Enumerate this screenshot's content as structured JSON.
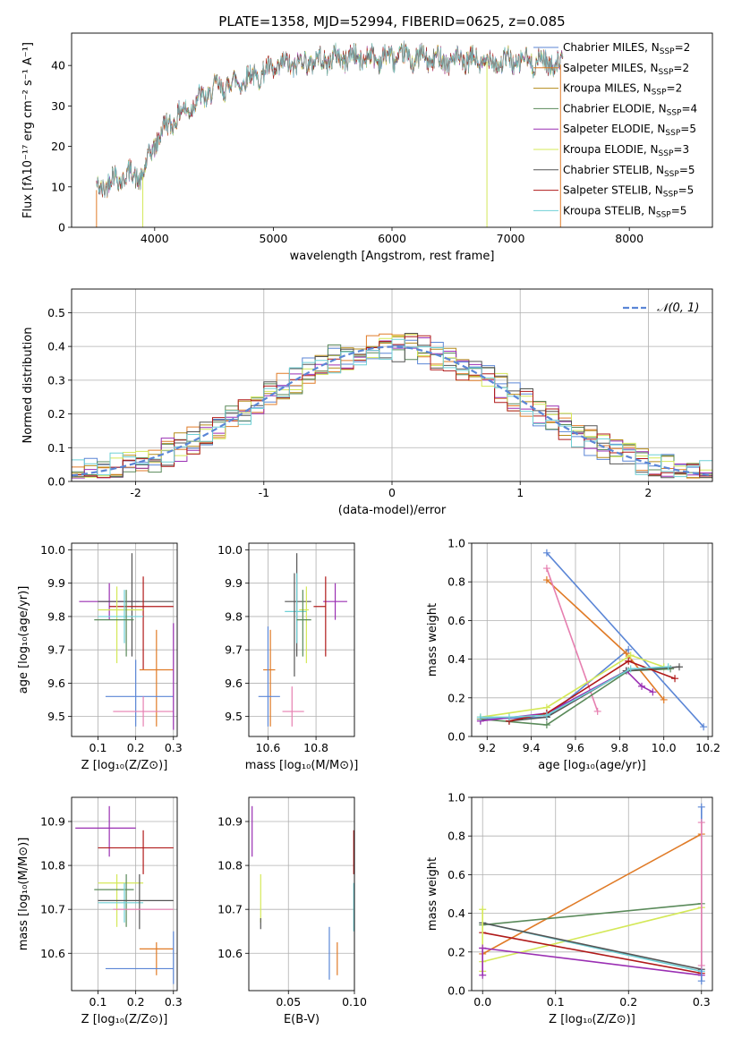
{
  "title": "PLATE=1358, MJD=52994, FIBERID=0625, z=0.085",
  "colors": {
    "Chabrier MILES": "#5b86d6",
    "Salpeter MILES": "#e07b27",
    "Kroupa MILES": "#b58b1a",
    "Chabrier ELODIE": "#5a8a5a",
    "Salpeter ELODIE": "#9a2fb3",
    "Kroupa ELODIE": "#d4e858",
    "Chabrier STELIB": "#555555",
    "Salpeter STELIB": "#b01a1a",
    "Kroupa STELIB": "#6fd0d6",
    "pink": "#e67fb0",
    "normal": "#5b86d6"
  },
  "chart_data": [
    {
      "id": "spectrum",
      "type": "line",
      "title": "PLATE=1358, MJD=52994, FIBERID=0625, z=0.085",
      "xlabel": "wavelength [Angstrom, rest frame]",
      "ylabel": "Flux [fλ10⁻¹⁷ erg cm⁻² s⁻¹ A⁻¹]",
      "xlim": [
        3300,
        8700
      ],
      "ylim": [
        0,
        48
      ],
      "xticks": [
        4000,
        5000,
        6000,
        7000,
        8000
      ],
      "yticks": [
        0,
        10,
        20,
        30,
        40
      ],
      "legend_placement": "top-right",
      "grid": false,
      "continuum": [
        [
          3500,
          9
        ],
        [
          3650,
          12
        ],
        [
          3800,
          13
        ],
        [
          3900,
          12.5
        ],
        [
          4000,
          21
        ],
        [
          4100,
          25
        ],
        [
          4300,
          30
        ],
        [
          4500,
          34
        ],
        [
          4700,
          36
        ],
        [
          4900,
          38
        ],
        [
          5100,
          40
        ],
        [
          5300,
          41
        ],
        [
          5600,
          42
        ],
        [
          5900,
          42
        ],
        [
          6100,
          42
        ],
        [
          6400,
          41.5
        ],
        [
          6700,
          41
        ],
        [
          7000,
          41
        ],
        [
          7300,
          41
        ],
        [
          7450,
          40
        ]
      ],
      "series": [
        {
          "name": "Chabrier MILES, N_SSP=2",
          "color_key": "Chabrier MILES"
        },
        {
          "name": "Salpeter MILES, N_SSP=2",
          "color_key": "Salpeter MILES"
        },
        {
          "name": "Kroupa MILES, N_SSP=2",
          "color_key": "Kroupa MILES"
        },
        {
          "name": "Chabrier ELODIE, N_SSP=4",
          "color_key": "Chabrier ELODIE"
        },
        {
          "name": "Salpeter ELODIE, N_SSP=5",
          "color_key": "Salpeter ELODIE"
        },
        {
          "name": "Kroupa ELODIE, N_SSP=3",
          "color_key": "Kroupa ELODIE"
        },
        {
          "name": "Chabrier STELIB, N_SSP=5",
          "color_key": "Chabrier STELIB"
        },
        {
          "name": "Salpeter STELIB, N_SSP=5",
          "color_key": "Salpeter STELIB"
        },
        {
          "name": "Kroupa STELIB, N_SSP=5",
          "color_key": "Kroupa STELIB"
        }
      ],
      "legend_labels": [
        {
          "main": "Chabrier MILES, N",
          "sub": "SSP",
          "tail": "=2"
        },
        {
          "main": "Salpeter MILES, N",
          "sub": "SSP",
          "tail": "=2"
        },
        {
          "main": "Kroupa MILES, N",
          "sub": "SSP",
          "tail": "=2"
        },
        {
          "main": "Chabrier ELODIE, N",
          "sub": "SSP",
          "tail": "=4"
        },
        {
          "main": "Salpeter ELODIE, N",
          "sub": "SSP",
          "tail": "=5"
        },
        {
          "main": "Kroupa ELODIE, N",
          "sub": "SSP",
          "tail": "=3"
        },
        {
          "main": "Chabrier STELIB, N",
          "sub": "SSP",
          "tail": "=5"
        },
        {
          "main": "Salpeter STELIB, N",
          "sub": "SSP",
          "tail": "=5"
        },
        {
          "main": "Kroupa STELIB, N",
          "sub": "SSP",
          "tail": "=5"
        }
      ]
    },
    {
      "id": "residuals",
      "type": "line",
      "xlabel": "(data-model)/error",
      "ylabel": "Normed distribution",
      "xlim": [
        -2.5,
        2.5
      ],
      "ylim": [
        0,
        0.57
      ],
      "xticks": [
        -2,
        -1,
        0,
        1,
        2
      ],
      "yticks": [
        0.0,
        0.1,
        0.2,
        0.3,
        0.4,
        0.5
      ],
      "grid": true,
      "legend": "𝒩(0, 1)",
      "legend_placement": "top-right",
      "hist_bin_width": 0.1
    },
    {
      "id": "age_vs_Z",
      "type": "scatter",
      "xlabel": "Z [log₁₀(Z/Z⊙)]",
      "ylabel": "age  [log₁₀(age/yr)]",
      "xlim": [
        0.03,
        0.31
      ],
      "ylim": [
        9.44,
        10.02
      ],
      "xticks": [
        0.1,
        0.2,
        0.3
      ],
      "yticks": [
        9.5,
        9.6,
        9.7,
        9.8,
        9.9,
        10.0
      ],
      "grid": true,
      "points": [
        {
          "c": "Salpeter ELODIE",
          "x": 0.13,
          "y": 9.845,
          "xerr": [
            0.05,
            0.21
          ],
          "yerr": [
            9.79,
            9.9
          ]
        },
        {
          "c": "Chabrier STELIB",
          "x": 0.19,
          "y": 9.845,
          "xerr": [
            0.1,
            0.3
          ],
          "yerr": [
            9.68,
            9.99
          ]
        },
        {
          "c": "Salpeter STELIB",
          "x": 0.22,
          "y": 9.83,
          "xerr": [
            0.13,
            0.3
          ],
          "yerr": [
            9.64,
            9.92
          ]
        },
        {
          "c": "Kroupa ELODIE",
          "x": 0.15,
          "y": 9.82,
          "xerr": [
            0.1,
            0.22
          ],
          "yerr": [
            9.66,
            9.89
          ]
        },
        {
          "c": "Kroupa STELIB",
          "x": 0.17,
          "y": 9.8,
          "xerr": [
            0.1,
            0.22
          ],
          "yerr": [
            9.72,
            9.88
          ]
        },
        {
          "c": "Chabrier ELODIE",
          "x": 0.175,
          "y": 9.79,
          "xerr": [
            0.09,
            0.195
          ],
          "yerr": [
            9.68,
            9.88
          ]
        },
        {
          "c": "Salpeter MILES",
          "x": 0.255,
          "y": 9.64,
          "xerr": [
            0.21,
            0.3
          ],
          "yerr": [
            9.47,
            9.76
          ]
        },
        {
          "c": "Chabrier MILES",
          "x": 0.2,
          "y": 9.56,
          "xerr": [
            0.12,
            0.3
          ],
          "yerr": [
            9.47,
            9.67
          ]
        },
        {
          "c": "pink",
          "x": 0.22,
          "y": 9.515,
          "xerr": [
            0.14,
            0.3
          ],
          "yerr": [
            9.47,
            9.56
          ]
        },
        {
          "c": "Salpeter ELODIE",
          "x": 0.3,
          "y": 9.66,
          "xerr": [
            0.3,
            0.3
          ],
          "yerr": [
            9.46,
            9.78
          ]
        }
      ]
    },
    {
      "id": "age_vs_mass",
      "type": "scatter",
      "xlabel": "mass [log₁₀(M/M⊙)]",
      "xlim": [
        10.52,
        10.96
      ],
      "ylim": [
        9.44,
        10.02
      ],
      "xticks": [
        10.6,
        10.8
      ],
      "yticks": [
        9.5,
        9.6,
        9.7,
        9.8,
        9.9,
        10.0
      ],
      "grid": true,
      "points": [
        {
          "c": "Salpeter ELODIE",
          "x": 10.88,
          "y": 9.845,
          "xerr": [
            10.83,
            10.93
          ],
          "yerr": [
            9.79,
            9.9
          ]
        },
        {
          "c": "Chabrier STELIB",
          "x": 10.72,
          "y": 9.845,
          "xerr": [
            10.67,
            10.78
          ],
          "yerr": [
            9.68,
            9.99
          ]
        },
        {
          "c": "Salpeter STELIB",
          "x": 10.84,
          "y": 9.83,
          "xerr": [
            10.79,
            10.84
          ],
          "yerr": [
            9.68,
            9.92
          ]
        },
        {
          "c": "Kroupa ELODIE",
          "x": 10.76,
          "y": 9.82,
          "xerr": [
            10.73,
            10.77
          ],
          "yerr": [
            9.66,
            9.89
          ]
        },
        {
          "c": "Kroupa STELIB",
          "x": 10.72,
          "y": 9.815,
          "xerr": [
            10.67,
            10.76
          ],
          "yerr": [
            9.72,
            9.93
          ]
        },
        {
          "c": "Chabrier ELODIE",
          "x": 10.745,
          "y": 9.79,
          "xerr": [
            10.72,
            10.78
          ],
          "yerr": [
            9.68,
            9.88
          ]
        },
        {
          "c": "Chabrier STELIB",
          "x": 10.71,
          "y": 9.815,
          "xerr": [
            10.71,
            10.71
          ],
          "yerr": [
            9.62,
            9.93
          ]
        },
        {
          "c": "Salpeter MILES",
          "x": 10.61,
          "y": 9.64,
          "xerr": [
            10.58,
            10.63
          ],
          "yerr": [
            9.47,
            9.76
          ]
        },
        {
          "c": "Chabrier MILES",
          "x": 10.6,
          "y": 9.56,
          "xerr": [
            10.56,
            10.65
          ],
          "yerr": [
            9.47,
            9.77
          ]
        },
        {
          "c": "pink",
          "x": 10.7,
          "y": 9.515,
          "xerr": [
            10.66,
            10.75
          ],
          "yerr": [
            9.47,
            9.59
          ]
        }
      ]
    },
    {
      "id": "mass_weight_vs_age",
      "type": "line",
      "xlabel": "age  [log₁₀(age/yr)]",
      "ylabel": "mass weight",
      "xlim": [
        9.13,
        10.22
      ],
      "ylim": [
        0,
        1
      ],
      "xticks": [
        9.2,
        9.4,
        9.6,
        9.8,
        10.0,
        10.2
      ],
      "yticks": [
        0.0,
        0.2,
        0.4,
        0.6,
        0.8,
        1.0
      ],
      "grid": true,
      "series": [
        {
          "c": "Chabrier MILES",
          "x": [
            9.47,
            10.18
          ],
          "y": [
            0.95,
            0.05
          ]
        },
        {
          "c": "Chabrier MILES",
          "x": [
            9.17,
            9.47,
            9.84
          ],
          "y": [
            0.09,
            0.1,
            0.45
          ]
        },
        {
          "c": "Salpeter MILES",
          "x": [
            9.47,
            9.83,
            10.0
          ],
          "y": [
            0.81,
            0.43,
            0.19
          ]
        },
        {
          "c": "pink",
          "x": [
            9.47,
            9.7
          ],
          "y": [
            0.87,
            0.13
          ]
        },
        {
          "c": "Kroupa ELODIE",
          "x": [
            9.17,
            9.47,
            9.85,
            10.0
          ],
          "y": [
            0.1,
            0.15,
            0.42,
            0.36
          ]
        },
        {
          "c": "Chabrier ELODIE",
          "x": [
            9.17,
            9.47,
            9.84,
            10.03
          ],
          "y": [
            0.09,
            0.06,
            0.34,
            0.35
          ]
        },
        {
          "c": "Salpeter ELODIE",
          "x": [
            9.17,
            9.47,
            9.83,
            9.9,
            9.95
          ],
          "y": [
            0.08,
            0.12,
            0.34,
            0.26,
            0.23
          ]
        },
        {
          "c": "Chabrier STELIB",
          "x": [
            9.3,
            9.47,
            9.83,
            10.07
          ],
          "y": [
            0.08,
            0.1,
            0.34,
            0.36
          ]
        },
        {
          "c": "Salpeter STELIB",
          "x": [
            9.3,
            9.47,
            9.84,
            10.05
          ],
          "y": [
            0.08,
            0.12,
            0.39,
            0.3
          ]
        },
        {
          "c": "Kroupa STELIB",
          "x": [
            9.17,
            9.3,
            9.47,
            9.85,
            10.02
          ],
          "y": [
            0.1,
            0.1,
            0.11,
            0.35,
            0.36
          ]
        }
      ]
    },
    {
      "id": "mass_vs_Z",
      "type": "scatter",
      "xlabel": "Z [log₁₀(Z/Z⊙)]",
      "ylabel": "mass [log₁₀(M/M⊙)]",
      "xlim": [
        0.03,
        0.31
      ],
      "ylim": [
        10.515,
        10.955
      ],
      "xticks": [
        0.1,
        0.2,
        0.3
      ],
      "yticks": [
        10.6,
        10.7,
        10.8,
        10.9
      ],
      "grid": true,
      "points": [
        {
          "c": "Salpeter ELODIE",
          "x": 0.13,
          "y": 10.885,
          "xerr": [
            0.04,
            0.2
          ],
          "yerr": [
            10.82,
            10.935
          ]
        },
        {
          "c": "Salpeter STELIB",
          "x": 0.22,
          "y": 10.84,
          "xerr": [
            0.1,
            0.3
          ],
          "yerr": [
            10.78,
            10.88
          ]
        },
        {
          "c": "Kroupa ELODIE",
          "x": 0.15,
          "y": 10.76,
          "xerr": [
            0.1,
            0.22
          ],
          "yerr": [
            10.66,
            10.78
          ]
        },
        {
          "c": "Chabrier ELODIE",
          "x": 0.175,
          "y": 10.745,
          "xerr": [
            0.09,
            0.195
          ],
          "yerr": [
            10.66,
            10.78
          ]
        },
        {
          "c": "Kroupa STELIB",
          "x": 0.17,
          "y": 10.715,
          "xerr": [
            0.1,
            0.22
          ],
          "yerr": [
            10.67,
            10.76
          ]
        },
        {
          "c": "Chabrier STELIB",
          "x": 0.21,
          "y": 10.72,
          "xerr": [
            0.1,
            0.3
          ],
          "yerr": [
            10.655,
            10.78
          ]
        },
        {
          "c": "pink",
          "x": 0.23,
          "y": 10.7,
          "xerr": [
            0.14,
            0.3
          ],
          "yerr": [
            10.7,
            10.7
          ]
        },
        {
          "c": "Salpeter MILES",
          "x": 0.255,
          "y": 10.61,
          "xerr": [
            0.21,
            0.3
          ],
          "yerr": [
            10.55,
            10.625
          ]
        },
        {
          "c": "Chabrier MILES",
          "x": 0.2,
          "y": 10.565,
          "xerr": [
            0.12,
            0.3
          ],
          "yerr": [
            10.565,
            10.565
          ]
        },
        {
          "c": "Chabrier MILES",
          "x": 0.3,
          "y": 10.6,
          "xerr": [
            0.3,
            0.3
          ],
          "yerr": [
            10.53,
            10.65
          ]
        }
      ]
    },
    {
      "id": "mass_vs_ebv",
      "type": "scatter",
      "xlabel": "E(B-V)",
      "xlim": [
        0.02,
        0.1
      ],
      "ylim": [
        10.515,
        10.955
      ],
      "xticks": [
        0.05,
        0.1
      ],
      "ytick_values": [
        10.6,
        10.7,
        10.8,
        10.9
      ],
      "grid": true,
      "points": [
        {
          "c": "Salpeter ELODIE",
          "x": 0.0225,
          "yerr": [
            10.82,
            10.935
          ]
        },
        {
          "c": "Kroupa ELODIE",
          "x": 0.029,
          "yerr": [
            10.67,
            10.78
          ]
        },
        {
          "c": "Chabrier STELIB",
          "x": 0.029,
          "yerr": [
            10.655,
            10.68
          ]
        },
        {
          "c": "Salpeter STELIB",
          "x": 0.0995,
          "yerr": [
            10.78,
            10.88
          ]
        },
        {
          "c": "Kroupa STELIB",
          "x": 0.0995,
          "yerr": [
            10.65,
            10.76
          ]
        },
        {
          "c": "Chabrier MILES",
          "x": 0.081,
          "yerr": [
            10.54,
            10.66
          ]
        },
        {
          "c": "Salpeter MILES",
          "x": 0.087,
          "yerr": [
            10.55,
            10.625
          ]
        }
      ]
    },
    {
      "id": "mass_weight_vs_Z",
      "type": "line",
      "xlabel": "Z [log₁₀(Z/Z⊙)]",
      "ylabel": "mass weight",
      "xlim": [
        -0.015,
        0.315
      ],
      "ylim": [
        0,
        1
      ],
      "xticks": [
        0.0,
        0.1,
        0.2,
        0.3
      ],
      "yticks": [
        0.0,
        0.2,
        0.4,
        0.6,
        0.8,
        1.0
      ],
      "grid": true,
      "series": [
        {
          "c": "Salpeter MILES",
          "x": [
            0.0,
            0.3
          ],
          "y": [
            0.19,
            0.81
          ]
        },
        {
          "c": "Chabrier ELODIE",
          "x": [
            0.0,
            0.3
          ],
          "y": [
            0.34,
            0.45
          ]
        },
        {
          "c": "Kroupa ELODIE",
          "x": [
            0.0,
            0.3
          ],
          "y": [
            0.15,
            0.43
          ]
        },
        {
          "c": "Kroupa STELIB",
          "x": [
            0.0,
            0.3
          ],
          "y": [
            0.35,
            0.1
          ]
        },
        {
          "c": "Chabrier STELIB",
          "x": [
            0.0,
            0.3
          ],
          "y": [
            0.35,
            0.11
          ]
        },
        {
          "c": "Salpeter STELIB",
          "x": [
            0.0,
            0.3
          ],
          "y": [
            0.3,
            0.09
          ]
        },
        {
          "c": "Salpeter ELODIE",
          "x": [
            0.0,
            0.3
          ],
          "y": [
            0.22,
            0.08
          ]
        },
        {
          "c": "Chabrier MILES",
          "x": [
            0.3,
            0.3
          ],
          "y": [
            0.05,
            0.95
          ]
        },
        {
          "c": "pink",
          "x": [
            0.3,
            0.3
          ],
          "y": [
            0.13,
            0.87
          ]
        },
        {
          "c": "Kroupa ELODIE",
          "x": [
            0.0,
            0.0
          ],
          "y": [
            0.1,
            0.42
          ]
        },
        {
          "c": "Salpeter ELODIE",
          "x": [
            0.0,
            0.0
          ],
          "y": [
            0.08,
            0.22
          ]
        }
      ]
    }
  ]
}
